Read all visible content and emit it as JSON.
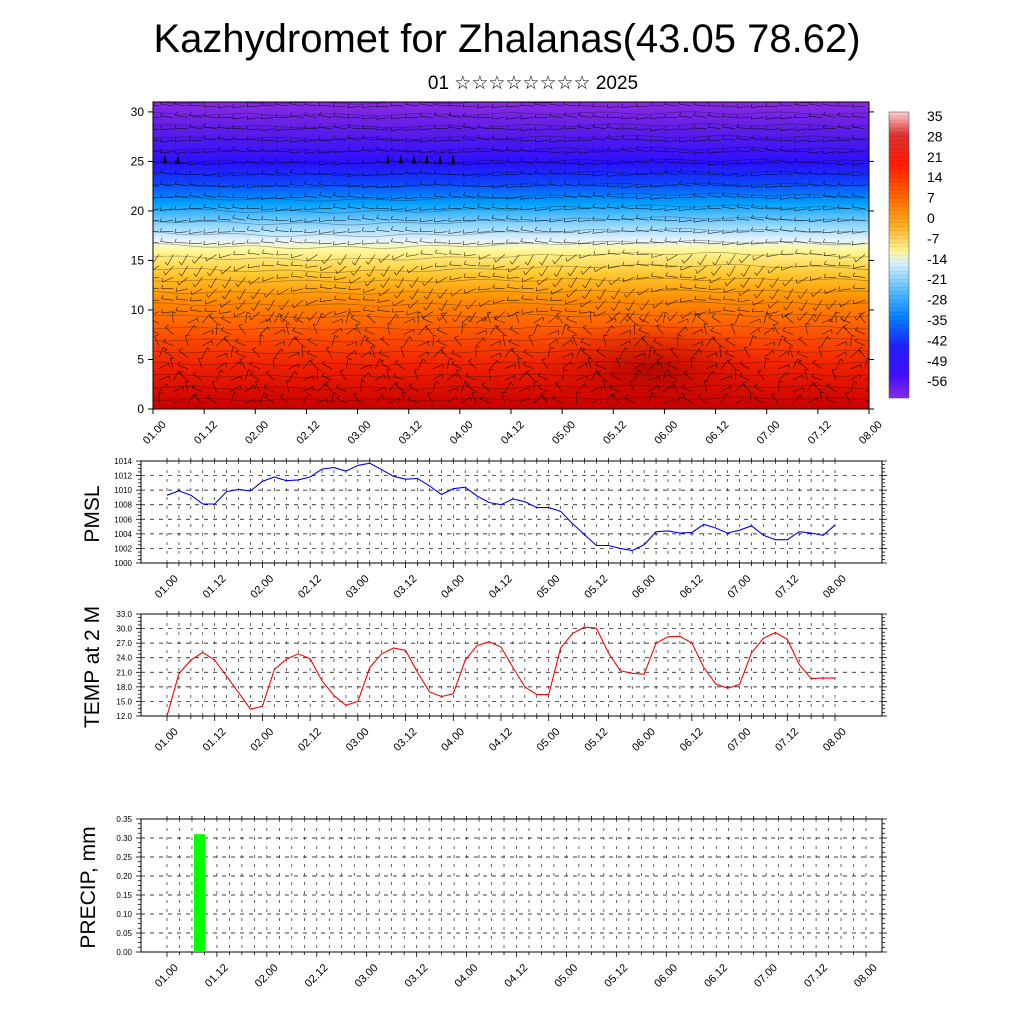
{
  "title": "Kazhydromet for Zhalanas(43.05 78.62)",
  "subtitle": "01 ☆☆☆☆☆☆☆☆ 2025",
  "x_tick_labels": [
    "01.00",
    "01.12",
    "02.00",
    "02.12",
    "03.00",
    "03.12",
    "04.00",
    "04.12",
    "05.00",
    "05.12",
    "06.00",
    "06.12",
    "07.00",
    "07.12",
    "08.00"
  ],
  "colorbar": {
    "labels": [
      "35",
      "28",
      "21",
      "14",
      "7",
      "0",
      "-7",
      "-14",
      "-21",
      "-28",
      "-35",
      "-42",
      "-49",
      "-56"
    ]
  },
  "chart_data": [
    {
      "type": "heatmap",
      "name": "temperature-wind-section",
      "x": [
        "01.00",
        "01.12",
        "02.00",
        "02.12",
        "03.00",
        "03.12",
        "04.00",
        "04.12",
        "05.00",
        "05.12",
        "06.00",
        "06.12",
        "07.00",
        "07.12",
        "08.00"
      ],
      "y_ticks": [
        0,
        5,
        10,
        15,
        20,
        25,
        30
      ],
      "ylim": [
        0,
        31
      ],
      "zlim": [
        -60,
        38
      ],
      "freezing_level_approx": [
        17.5,
        17.5,
        17.2,
        17.0,
        16.6,
        16.3,
        16.0,
        15.8,
        15.6,
        15.5,
        15.5,
        15.6,
        15.8,
        16.0,
        16.0
      ],
      "description_colors": [
        "#8a2be2",
        "#2020ff",
        "#00a0ff",
        "#c0e8ff",
        "#fff9a0",
        "#ffa500",
        "#ff3000",
        "#b00000"
      ]
    },
    {
      "type": "line",
      "name": "PMSL",
      "ylabel": "PMSL",
      "ylim": [
        1000,
        1014
      ],
      "y_ticks": [
        "1000",
        "1002",
        "1004",
        "1006",
        "1008",
        "1010",
        "1012",
        "1014"
      ],
      "color": "#0000ff",
      "values": [
        1009.3,
        1009.9,
        1009.3,
        1008.1,
        1008.1,
        1009.8,
        1010.1,
        1009.9,
        1011.2,
        1011.8,
        1011.3,
        1011.4,
        1011.8,
        1012.9,
        1013.1,
        1012.6,
        1013.4,
        1013.7,
        1012.8,
        1011.9,
        1011.5,
        1011.6,
        1010.6,
        1009.4,
        1010.2,
        1010.4,
        1009.2,
        1008.3,
        1008.0,
        1008.8,
        1008.4,
        1007.6,
        1007.6,
        1007.1,
        1005.4,
        1003.9,
        1002.4,
        1002.4,
        1002.0,
        1001.7,
        1002.5,
        1004.3,
        1004.4,
        1004.1,
        1004.2,
        1005.3,
        1004.8,
        1004.1,
        1004.5,
        1005.1,
        1003.8,
        1003.2,
        1003.2,
        1004.3,
        1004.1,
        1003.8,
        1005.2
      ]
    },
    {
      "type": "line",
      "name": "TEMP at 2 M",
      "ylabel": "TEMP at 2 M",
      "ylim": [
        12.0,
        33.0
      ],
      "y_ticks": [
        "12.0",
        "15.0",
        "18.0",
        "21.0",
        "24.0",
        "27.0",
        "30.0",
        "33.0"
      ],
      "color": "#ff0000",
      "values": [
        12.0,
        20.7,
        23.5,
        25.1,
        23.5,
        20.2,
        16.8,
        13.4,
        14.0,
        21.6,
        23.7,
        24.8,
        23.8,
        19.2,
        16.2,
        14.2,
        15.0,
        22.0,
        24.8,
        26.0,
        25.5,
        21.0,
        17.0,
        16.0,
        16.6,
        23.5,
        26.5,
        27.3,
        26.2,
        22.0,
        18.0,
        16.4,
        16.4,
        26.0,
        29.0,
        30.3,
        30.1,
        25.0,
        21.3,
        20.8,
        20.6,
        27.0,
        28.3,
        28.4,
        27.0,
        22.0,
        18.6,
        17.7,
        18.5,
        25.0,
        28.0,
        29.2,
        27.8,
        22.6,
        19.7,
        19.8,
        19.8
      ]
    },
    {
      "type": "bar",
      "name": "PRECIP, mm",
      "ylabel": "PRECIP, mm",
      "ylim": [
        0,
        0.35
      ],
      "y_ticks": [
        "0.00",
        "0.05",
        "0.10",
        "0.15",
        "0.20",
        "0.25",
        "0.30",
        "0.35"
      ],
      "color": "#00ff00",
      "bars": [
        {
          "x_index": 2.6,
          "value": 0.31
        }
      ]
    }
  ]
}
